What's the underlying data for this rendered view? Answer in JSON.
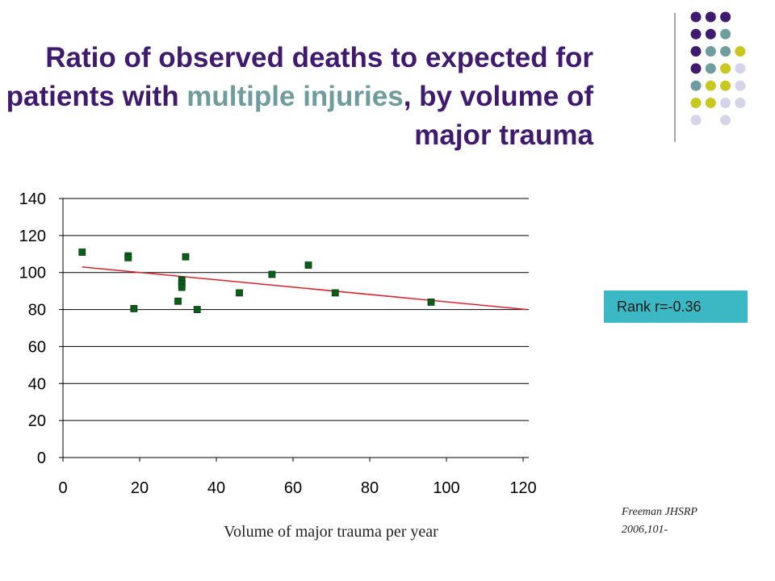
{
  "title": {
    "part1": "Ratio of observed deaths to expected for patients with ",
    "highlight": "multiple injuries",
    "part2": ", by volume of major trauma"
  },
  "rank_label": "Rank r=-0.36",
  "source": {
    "line1": "Freeman JHSRP",
    "line2": "2006,101-"
  },
  "colors": {
    "title": "#3f1a6e",
    "highlight": "#6f9c9c",
    "point": "#0b5e17",
    "trendline": "#e0212a",
    "rank_box": "#3bb8c4",
    "dot_palette": [
      "#3f1a6e",
      "#6f9c9c",
      "#c8c81e",
      "#d4d4ea"
    ]
  },
  "chart_data": {
    "type": "scatter",
    "title": "",
    "xlabel": "Volume of major trauma per year",
    "ylabel": "",
    "xlim": [
      0,
      120
    ],
    "ylim": [
      0,
      140
    ],
    "x_ticks": [
      0,
      20,
      40,
      60,
      80,
      100,
      120
    ],
    "y_ticks": [
      0,
      20,
      40,
      60,
      80,
      100,
      120,
      140
    ],
    "grid": "horizontal",
    "points": [
      {
        "x": 5,
        "y": 111
      },
      {
        "x": 17,
        "y": 109
      },
      {
        "x": 17,
        "y": 108
      },
      {
        "x": 18.5,
        "y": 80.5
      },
      {
        "x": 30,
        "y": 84.5
      },
      {
        "x": 31,
        "y": 96
      },
      {
        "x": 31,
        "y": 94
      },
      {
        "x": 31,
        "y": 92
      },
      {
        "x": 32,
        "y": 108.5
      },
      {
        "x": 35,
        "y": 80
      },
      {
        "x": 46,
        "y": 89
      },
      {
        "x": 54.5,
        "y": 99
      },
      {
        "x": 64,
        "y": 104
      },
      {
        "x": 71,
        "y": 89
      },
      {
        "x": 96,
        "y": 84
      }
    ],
    "trendline": {
      "x": [
        5,
        121
      ],
      "y": [
        103,
        80
      ]
    }
  },
  "decoration": {
    "dot_grid": [
      [
        0,
        0,
        0,
        -1
      ],
      [
        0,
        0,
        1,
        -1
      ],
      [
        0,
        1,
        1,
        2
      ],
      [
        0,
        1,
        2,
        3
      ],
      [
        1,
        2,
        2,
        3
      ],
      [
        2,
        2,
        3,
        3
      ],
      [
        3,
        -1,
        3,
        -1
      ]
    ]
  }
}
